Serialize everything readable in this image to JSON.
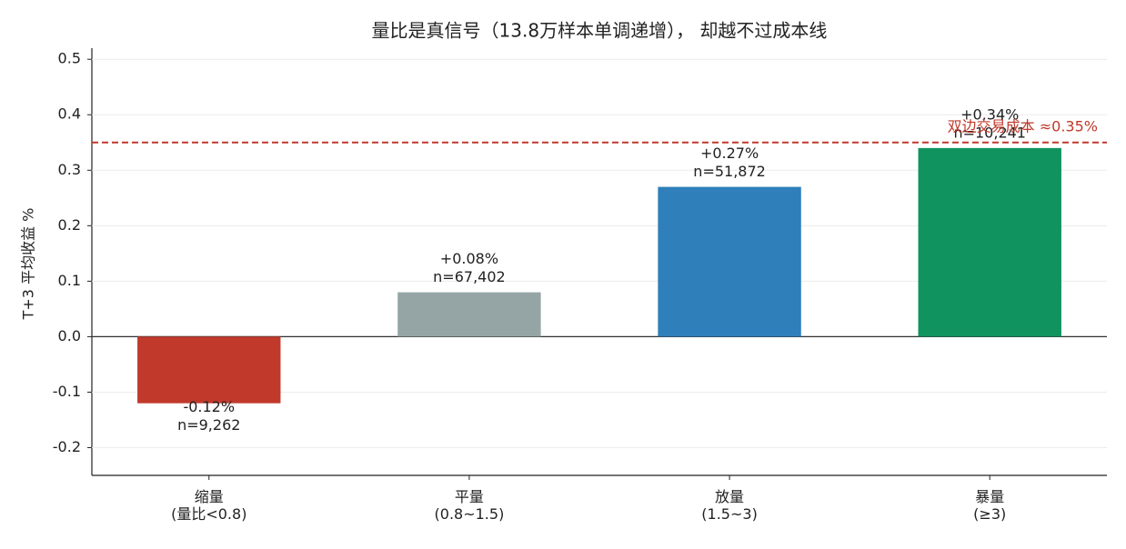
{
  "chart_data": {
    "type": "bar",
    "title": "量比是真信号（13.8万样本单调递增）， 却越不过成本线",
    "y_label": "T+3 平均收益 %",
    "categories": [
      "缩量\n(量比<0.8)",
      "平量\n(0.8~1.5)",
      "放量\n(1.5~3)",
      "暴量\n(≥3)"
    ],
    "values": [
      -0.12,
      0.08,
      0.27,
      0.34
    ],
    "value_labels": [
      "-0.12%",
      "+0.08%",
      "+0.27%",
      "+0.34%"
    ],
    "sample_labels": [
      "n=9,262",
      "n=67,402",
      "n=51,872",
      "n=10,241"
    ],
    "colors": [
      "#c0392b",
      "#95a5a6",
      "#2e7fba",
      "#10935f"
    ],
    "ylim": [
      -0.25,
      0.52
    ],
    "yticks": [
      -0.2,
      -0.1,
      {
        "value": 0,
        "label": "0.0"
      },
      0.1,
      0.2,
      0.3,
      0.4,
      0.5
    ],
    "grid": true,
    "reference_line": {
      "value": 0.35,
      "label": "双边交易成本 ≈0.35%",
      "color": "#c0392b"
    }
  }
}
